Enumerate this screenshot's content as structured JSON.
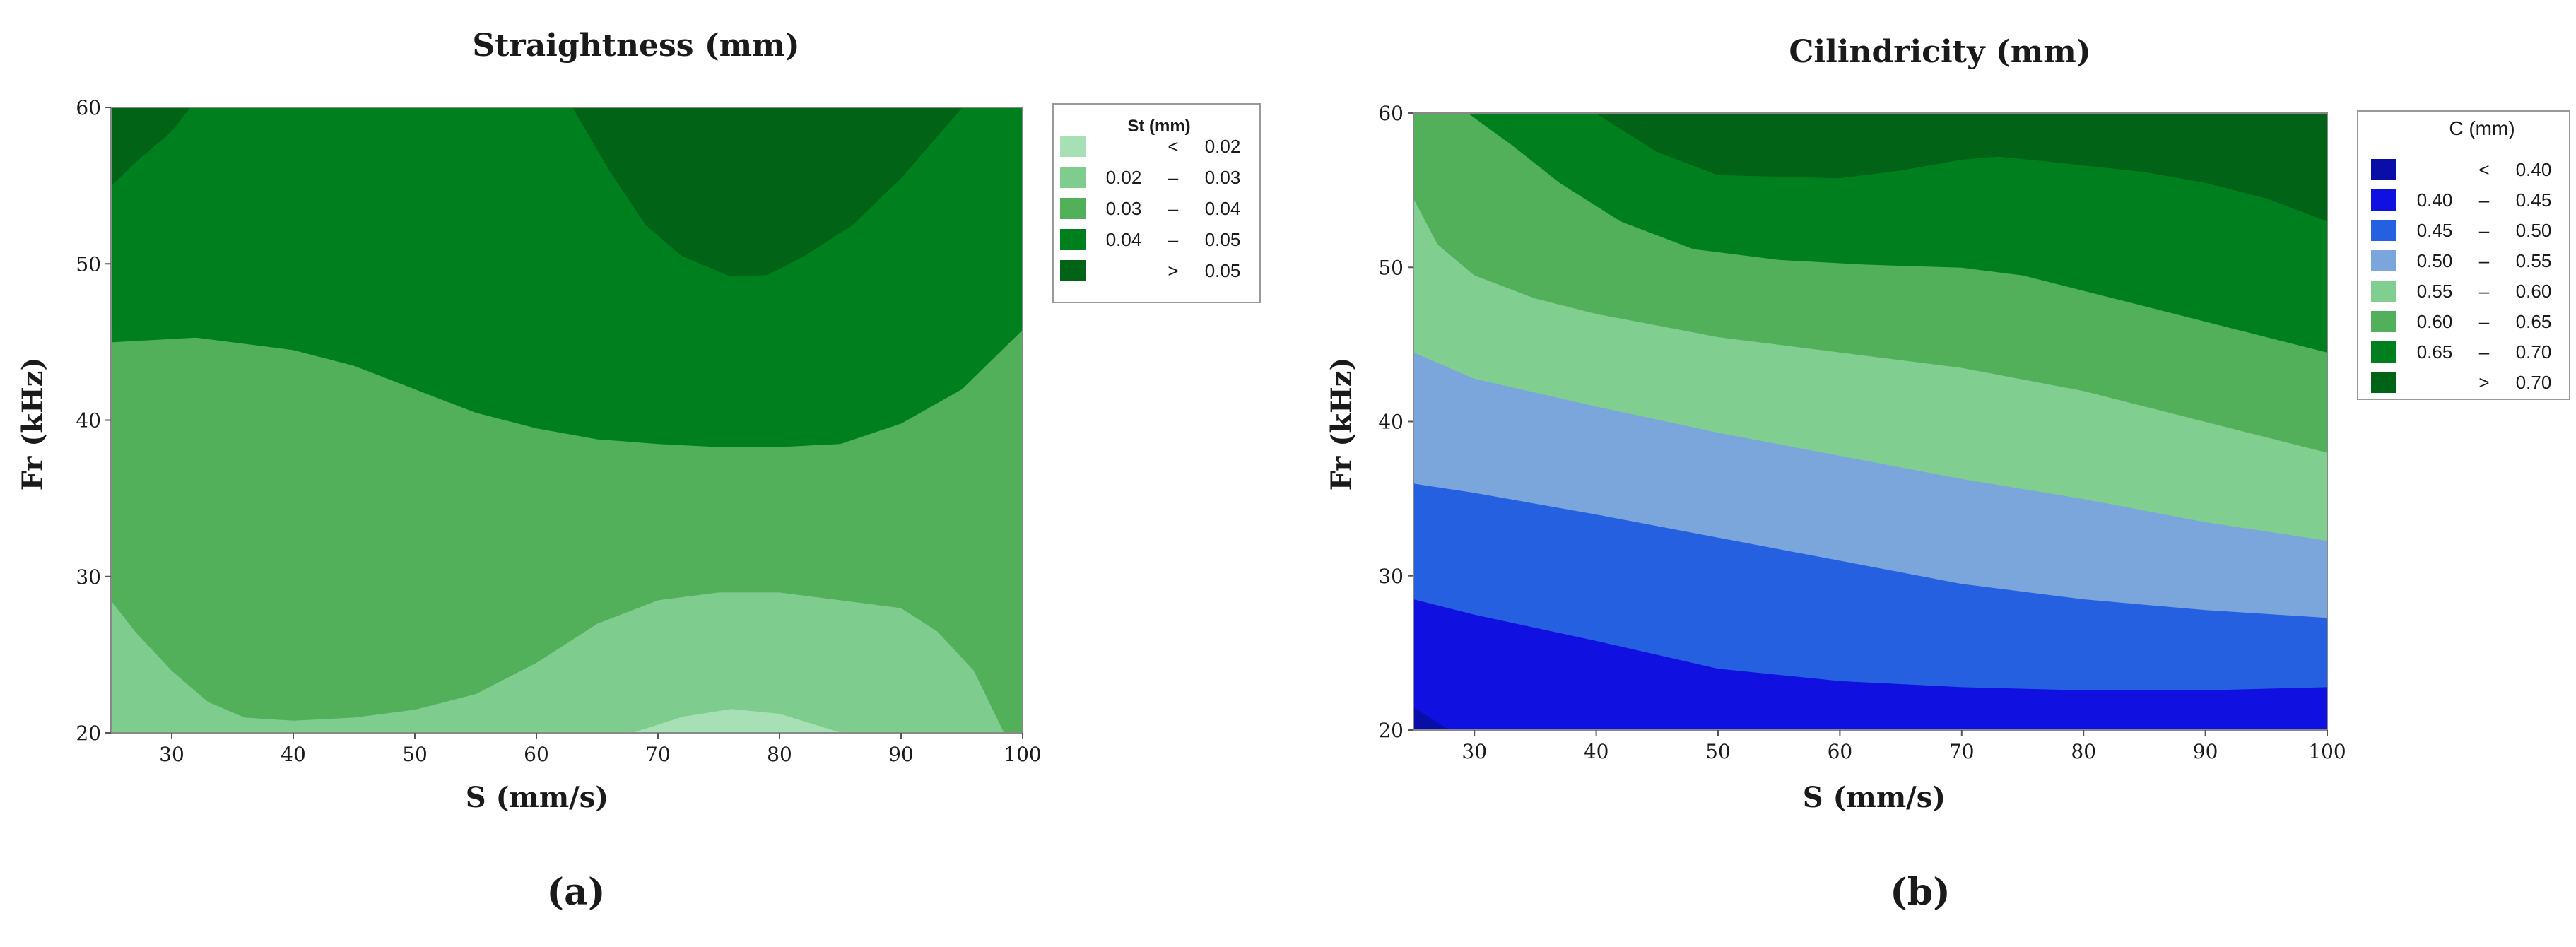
{
  "chart_data": [
    {
      "type": "heatmap",
      "panel_label": "(a)",
      "title": "Straightness (mm)",
      "xlabel": "S (mm/s)",
      "ylabel": "Fr (kHz)",
      "xlim": [
        25,
        100
      ],
      "ylim": [
        20,
        60
      ],
      "xticks": [
        "30",
        "40",
        "50",
        "60",
        "70",
        "80",
        "90",
        "100"
      ],
      "yticks": [
        "20",
        "30",
        "40",
        "50",
        "60"
      ],
      "legend": {
        "position": "right",
        "title": "St (mm)",
        "items": [
          {
            "lo": "",
            "op": "<",
            "hi": "0.02",
            "color": "#a6e0b4"
          },
          {
            "lo": "0.02",
            "op": "–",
            "hi": "0.03",
            "color": "#7fcd8e"
          },
          {
            "lo": "0.03",
            "op": "–",
            "hi": "0.04",
            "color": "#52b05a"
          },
          {
            "lo": "0.04",
            "op": "–",
            "hi": "0.05",
            "color": "#007f1f"
          },
          {
            "lo": "",
            "op": ">",
            "hi": "0.05",
            "color": "#006315"
          }
        ]
      },
      "contours": [
        {
          "level": 0,
          "points": [
            [
              25,
              20
            ],
            [
              100,
              20
            ],
            [
              100,
              60
            ],
            [
              25,
              60
            ]
          ]
        },
        {
          "level": 1,
          "points": [
            [
              25,
              20
            ],
            [
              100,
              20
            ],
            [
              100,
              60
            ],
            [
              25,
              60
            ]
          ]
        },
        {
          "level": 2,
          "points": [
            [
              25,
              28.5
            ],
            [
              27,
              26.5
            ],
            [
              30,
              24
            ],
            [
              33,
              22
            ],
            [
              36,
              21
            ],
            [
              40,
              20.8
            ],
            [
              45,
              21
            ],
            [
              50,
              21.5
            ],
            [
              55,
              22.5
            ],
            [
              60,
              24.5
            ],
            [
              65,
              27
            ],
            [
              70,
              28.5
            ],
            [
              75,
              29
            ],
            [
              80,
              29
            ],
            [
              85,
              28.5
            ],
            [
              90,
              28
            ],
            [
              93,
              26.5
            ],
            [
              96,
              24
            ],
            [
              98.5,
              20
            ],
            [
              100,
              20
            ],
            [
              100,
              60
            ],
            [
              25,
              60
            ]
          ]
        },
        {
          "level": 3,
          "points": [
            [
              25,
              45
            ],
            [
              32,
              45.3
            ],
            [
              40,
              44.5
            ],
            [
              45,
              43.5
            ],
            [
              50,
              42
            ],
            [
              55,
              40.5
            ],
            [
              60,
              39.5
            ],
            [
              65,
              38.8
            ],
            [
              70,
              38.5
            ],
            [
              75,
              38.3
            ],
            [
              80,
              38.3
            ],
            [
              85,
              38.5
            ],
            [
              90,
              39.8
            ],
            [
              95,
              42
            ],
            [
              100,
              45.8
            ],
            [
              100,
              60
            ],
            [
              25,
              60
            ]
          ]
        },
        {
          "level": 4,
          "points": [
            [
              25,
              55
            ],
            [
              27,
              56.5
            ],
            [
              30,
              58.5
            ],
            [
              31.5,
              60
            ],
            [
              25,
              60
            ]
          ]
        },
        {
          "level": 4,
          "points": [
            [
              63,
              60
            ],
            [
              66,
              56
            ],
            [
              69,
              52.5
            ],
            [
              72,
              50.5
            ],
            [
              76,
              49.2
            ],
            [
              79,
              49.3
            ],
            [
              82,
              50.5
            ],
            [
              86,
              52.5
            ],
            [
              90,
              55.5
            ],
            [
              95,
              60
            ]
          ]
        }
      ],
      "highlights": [
        {
          "level": 0,
          "points": [
            [
              68,
              20
            ],
            [
              72,
              21
            ],
            [
              76,
              21.5
            ],
            [
              80,
              21.2
            ],
            [
              85,
              20
            ]
          ]
        }
      ]
    },
    {
      "type": "heatmap",
      "panel_label": "(b)",
      "title": "Cilindricity (mm)",
      "xlabel": "S (mm/s)",
      "ylabel": "Fr (kHz)",
      "xlim": [
        25,
        100
      ],
      "ylim": [
        20,
        60
      ],
      "xticks": [
        "30",
        "40",
        "50",
        "60",
        "70",
        "80",
        "90",
        "100"
      ],
      "yticks": [
        "20",
        "30",
        "40",
        "50",
        "60"
      ],
      "legend": {
        "position": "right",
        "title": "C (mm)",
        "items": [
          {
            "lo": "",
            "op": "<",
            "hi": "0.40",
            "color": "#0a0ea8"
          },
          {
            "lo": "0.40",
            "op": "–",
            "hi": "0.45",
            "color": "#1010e0"
          },
          {
            "lo": "0.45",
            "op": "–",
            "hi": "0.50",
            "color": "#2560e0"
          },
          {
            "lo": "0.50",
            "op": "–",
            "hi": "0.55",
            "color": "#7aa6dc"
          },
          {
            "lo": "0.55",
            "op": "–",
            "hi": "0.60",
            "color": "#80cf90"
          },
          {
            "lo": "0.60",
            "op": "–",
            "hi": "0.65",
            "color": "#52b05a"
          },
          {
            "lo": "0.65",
            "op": "–",
            "hi": "0.70",
            "color": "#007f1f"
          },
          {
            "lo": "",
            "op": ">",
            "hi": "0.70",
            "color": "#006315"
          }
        ]
      },
      "contours": [
        {
          "level": 0,
          "points": [
            [
              25,
              20
            ],
            [
              100,
              20
            ],
            [
              100,
              60
            ],
            [
              25,
              60
            ]
          ]
        },
        {
          "level": 1,
          "points": [
            [
              25,
              21.5
            ],
            [
              27,
              20.5
            ],
            [
              28,
              20
            ],
            [
              100,
              20
            ],
            [
              100,
              60
            ],
            [
              25,
              60
            ]
          ]
        },
        {
          "level": 2,
          "points": [
            [
              25,
              28.5
            ],
            [
              30,
              27.5
            ],
            [
              40,
              25.8
            ],
            [
              50,
              24
            ],
            [
              60,
              23.2
            ],
            [
              70,
              22.8
            ],
            [
              80,
              22.6
            ],
            [
              90,
              22.6
            ],
            [
              100,
              22.8
            ],
            [
              100,
              60
            ],
            [
              25,
              60
            ]
          ]
        },
        {
          "level": 3,
          "points": [
            [
              25,
              36
            ],
            [
              30,
              35.4
            ],
            [
              40,
              34
            ],
            [
              50,
              32.5
            ],
            [
              60,
              31
            ],
            [
              70,
              29.5
            ],
            [
              80,
              28.5
            ],
            [
              90,
              27.8
            ],
            [
              100,
              27.3
            ],
            [
              100,
              60
            ],
            [
              25,
              60
            ]
          ]
        },
        {
          "level": 4,
          "points": [
            [
              25,
              44.5
            ],
            [
              30,
              42.8
            ],
            [
              40,
              41
            ],
            [
              50,
              39.3
            ],
            [
              60,
              37.8
            ],
            [
              70,
              36.3
            ],
            [
              80,
              35
            ],
            [
              90,
              33.5
            ],
            [
              100,
              32.3
            ],
            [
              100,
              60
            ],
            [
              25,
              60
            ]
          ]
        },
        {
          "level": 5,
          "points": [
            [
              25,
              54.5
            ],
            [
              27,
              51.5
            ],
            [
              30,
              49.5
            ],
            [
              35,
              48
            ],
            [
              40,
              47
            ],
            [
              50,
              45.5
            ],
            [
              60,
              44.5
            ],
            [
              70,
              43.5
            ],
            [
              80,
              42
            ],
            [
              90,
              40
            ],
            [
              100,
              38
            ],
            [
              100,
              60
            ],
            [
              25,
              60
            ]
          ]
        },
        {
          "level": 6,
          "points": [
            [
              29.5,
              60
            ],
            [
              33,
              58
            ],
            [
              37,
              55.5
            ],
            [
              42,
              53
            ],
            [
              48,
              51.2
            ],
            [
              55,
              50.5
            ],
            [
              62,
              50.2
            ],
            [
              70,
              50
            ],
            [
              75,
              49.5
            ],
            [
              80,
              48.5
            ],
            [
              85,
              47.5
            ],
            [
              90,
              46.5
            ],
            [
              95,
              45.5
            ],
            [
              100,
              44.5
            ],
            [
              100,
              60
            ]
          ]
        },
        {
          "level": 7,
          "points": [
            [
              40,
              60
            ],
            [
              45,
              57.5
            ],
            [
              50,
              56
            ],
            [
              60,
              55.8
            ],
            [
              65,
              56.3
            ],
            [
              70,
              57
            ],
            [
              73,
              57.2
            ],
            [
              78,
              56.8
            ],
            [
              85,
              56.2
            ],
            [
              90,
              55.5
            ],
            [
              95,
              54.5
            ],
            [
              100,
              53
            ],
            [
              100,
              60
            ]
          ]
        }
      ]
    }
  ]
}
